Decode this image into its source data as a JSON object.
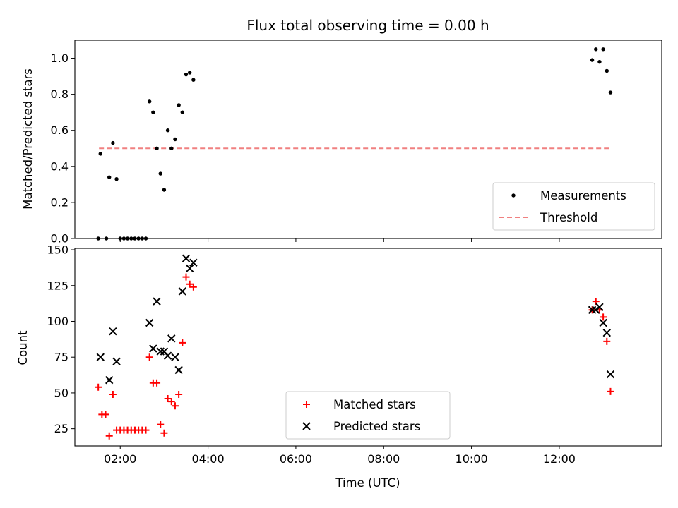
{
  "chart_data": [
    {
      "type": "scatter",
      "title": "Flux total observing time = 0.00 h",
      "xlabel": "",
      "ylabel": "Matched/Predicted stars",
      "xlim": [
        "00:58",
        "14:20"
      ],
      "ylim": [
        0,
        1.1
      ],
      "yticks": [
        0.0,
        0.2,
        0.4,
        0.6,
        0.8,
        1.0
      ],
      "ytick_labels": [
        "0.0",
        "0.2",
        "0.4",
        "0.6",
        "0.8",
        "1.0"
      ],
      "xticks": [
        "02:00",
        "04:00",
        "06:00",
        "08:00",
        "10:00",
        "12:00"
      ],
      "show_xtick_labels": false,
      "grid": false,
      "legend_position": "lower-right",
      "threshold": {
        "name": "Threshold",
        "y": 0.5,
        "x_start": "01:31",
        "x_end": "13:11",
        "color": "#f08080",
        "style": "dashed"
      },
      "series": [
        {
          "name": "Measurements",
          "marker": "dot",
          "color": "#000000",
          "points": [
            {
              "x": "01:30",
              "y": 0.0
            },
            {
              "x": "01:41",
              "y": 0.0
            },
            {
              "x": "01:33",
              "y": 0.47
            },
            {
              "x": "01:45",
              "y": 0.34
            },
            {
              "x": "01:50",
              "y": 0.53
            },
            {
              "x": "01:55",
              "y": 0.33
            },
            {
              "x": "02:00",
              "y": 0.0
            },
            {
              "x": "02:05",
              "y": 0.0
            },
            {
              "x": "02:10",
              "y": 0.0
            },
            {
              "x": "02:15",
              "y": 0.0
            },
            {
              "x": "02:20",
              "y": 0.0
            },
            {
              "x": "02:25",
              "y": 0.0
            },
            {
              "x": "02:30",
              "y": 0.0
            },
            {
              "x": "02:35",
              "y": 0.0
            },
            {
              "x": "02:40",
              "y": 0.76
            },
            {
              "x": "02:45",
              "y": 0.7
            },
            {
              "x": "02:50",
              "y": 0.5
            },
            {
              "x": "02:55",
              "y": 0.36
            },
            {
              "x": "03:00",
              "y": 0.27
            },
            {
              "x": "03:05",
              "y": 0.6
            },
            {
              "x": "03:10",
              "y": 0.5
            },
            {
              "x": "03:15",
              "y": 0.55
            },
            {
              "x": "03:20",
              "y": 0.74
            },
            {
              "x": "03:25",
              "y": 0.7
            },
            {
              "x": "03:30",
              "y": 0.91
            },
            {
              "x": "03:35",
              "y": 0.92
            },
            {
              "x": "03:40",
              "y": 0.88
            },
            {
              "x": "12:45",
              "y": 0.99
            },
            {
              "x": "12:50",
              "y": 1.05
            },
            {
              "x": "12:55",
              "y": 0.98
            },
            {
              "x": "13:00",
              "y": 1.05
            },
            {
              "x": "13:05",
              "y": 0.93
            },
            {
              "x": "13:10",
              "y": 0.81
            }
          ]
        }
      ]
    },
    {
      "type": "scatter",
      "title": "",
      "xlabel": "Time (UTC)",
      "ylabel": "Count",
      "xlim": [
        "00:58",
        "14:20"
      ],
      "ylim": [
        13,
        151
      ],
      "yticks": [
        25,
        50,
        75,
        100,
        125,
        150
      ],
      "ytick_labels": [
        "25",
        "50",
        "75",
        "100",
        "125",
        "150"
      ],
      "xticks": [
        "02:00",
        "04:00",
        "06:00",
        "08:00",
        "10:00",
        "12:00"
      ],
      "show_xtick_labels": true,
      "grid": false,
      "legend_position": "lower-center",
      "series": [
        {
          "name": "Matched stars",
          "marker": "plus",
          "color": "#ff0000",
          "points": [
            {
              "x": "01:30",
              "y": 54
            },
            {
              "x": "01:35",
              "y": 35
            },
            {
              "x": "01:40",
              "y": 35
            },
            {
              "x": "01:45",
              "y": 20
            },
            {
              "x": "01:50",
              "y": 49
            },
            {
              "x": "01:55",
              "y": 24
            },
            {
              "x": "02:00",
              "y": 24
            },
            {
              "x": "02:05",
              "y": 24
            },
            {
              "x": "02:10",
              "y": 24
            },
            {
              "x": "02:15",
              "y": 24
            },
            {
              "x": "02:20",
              "y": 24
            },
            {
              "x": "02:25",
              "y": 24
            },
            {
              "x": "02:30",
              "y": 24
            },
            {
              "x": "02:35",
              "y": 24
            },
            {
              "x": "02:40",
              "y": 75
            },
            {
              "x": "02:45",
              "y": 57
            },
            {
              "x": "02:50",
              "y": 57
            },
            {
              "x": "02:55",
              "y": 28
            },
            {
              "x": "03:00",
              "y": 22
            },
            {
              "x": "03:05",
              "y": 46
            },
            {
              "x": "03:10",
              "y": 44
            },
            {
              "x": "03:15",
              "y": 41
            },
            {
              "x": "03:20",
              "y": 49
            },
            {
              "x": "03:25",
              "y": 85
            },
            {
              "x": "03:30",
              "y": 131
            },
            {
              "x": "03:35",
              "y": 126
            },
            {
              "x": "03:40",
              "y": 124
            },
            {
              "x": "12:45",
              "y": 108
            },
            {
              "x": "12:50",
              "y": 114
            },
            {
              "x": "12:55",
              "y": 108
            },
            {
              "x": "13:00",
              "y": 103
            },
            {
              "x": "13:05",
              "y": 86
            },
            {
              "x": "13:10",
              "y": 51
            }
          ]
        },
        {
          "name": "Predicted stars",
          "marker": "x",
          "color": "#000000",
          "points": [
            {
              "x": "01:33",
              "y": 75
            },
            {
              "x": "01:45",
              "y": 59
            },
            {
              "x": "01:50",
              "y": 93
            },
            {
              "x": "01:55",
              "y": 72
            },
            {
              "x": "02:40",
              "y": 99
            },
            {
              "x": "02:45",
              "y": 81
            },
            {
              "x": "02:50",
              "y": 114
            },
            {
              "x": "02:55",
              "y": 79
            },
            {
              "x": "03:00",
              "y": 79
            },
            {
              "x": "03:05",
              "y": 76
            },
            {
              "x": "03:10",
              "y": 88
            },
            {
              "x": "03:15",
              "y": 75
            },
            {
              "x": "03:20",
              "y": 66
            },
            {
              "x": "03:25",
              "y": 121
            },
            {
              "x": "03:30",
              "y": 144
            },
            {
              "x": "03:35",
              "y": 137
            },
            {
              "x": "03:40",
              "y": 141
            },
            {
              "x": "12:45",
              "y": 108
            },
            {
              "x": "12:50",
              "y": 108
            },
            {
              "x": "12:55",
              "y": 110
            },
            {
              "x": "13:00",
              "y": 99
            },
            {
              "x": "13:05",
              "y": 92
            },
            {
              "x": "13:10",
              "y": 63
            }
          ]
        }
      ]
    }
  ]
}
